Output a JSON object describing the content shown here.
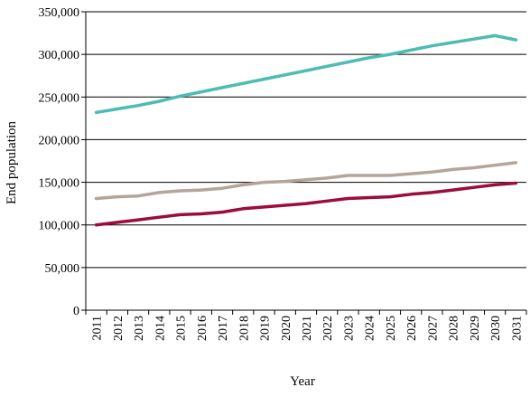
{
  "chart_data": {
    "type": "line",
    "title": "",
    "xlabel": "Year",
    "ylabel": "End population",
    "ylim": [
      0,
      350000
    ],
    "yticks": [
      0,
      50000,
      100000,
      150000,
      200000,
      250000,
      300000,
      350000
    ],
    "ytick_labels": [
      "0",
      "50,000",
      "100,000",
      "150,000",
      "200,000",
      "250,000",
      "300,000",
      "350,000"
    ],
    "grid": "horizontal",
    "legend": "none",
    "x": [
      "2011",
      "2012",
      "2013",
      "2014",
      "2015",
      "2016",
      "2017",
      "2018",
      "2019",
      "2020",
      "2021",
      "2022",
      "2023",
      "2024",
      "2025",
      "2026",
      "2027",
      "2028",
      "2029",
      "2030",
      "2031"
    ],
    "series": [
      {
        "color": "#4dbdb3",
        "values": [
          232000,
          236000,
          240000,
          245000,
          251000,
          256000,
          261000,
          266000,
          271000,
          276000,
          281000,
          286000,
          291000,
          296000,
          300000,
          305000,
          310000,
          314000,
          318000,
          322000,
          317000
        ]
      },
      {
        "color": "#b3a59c",
        "values": [
          131000,
          133000,
          134000,
          138000,
          140000,
          141000,
          143000,
          147000,
          150000,
          151000,
          153000,
          155000,
          158000,
          158000,
          158000,
          160000,
          162000,
          165000,
          167000,
          170000,
          173000
        ]
      },
      {
        "color": "#9b0d3b",
        "values": [
          100000,
          103000,
          106000,
          109000,
          112000,
          113000,
          115000,
          119000,
          121000,
          123000,
          125000,
          128000,
          131000,
          132000,
          133000,
          136000,
          138000,
          141000,
          144000,
          147000,
          149000
        ]
      }
    ]
  }
}
